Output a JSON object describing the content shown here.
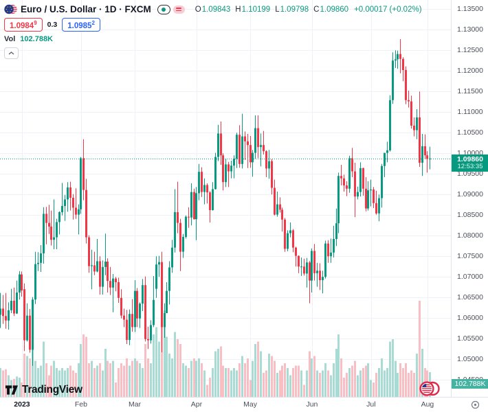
{
  "header": {
    "symbol_title": "Euro / U.S. Dollar · 1D · FXCM",
    "ohlc": {
      "o_label": "O",
      "o_value": "1.09843",
      "h_label": "H",
      "h_value": "1.10199",
      "l_label": "L",
      "l_value": "1.09798",
      "c_label": "C",
      "c_value": "1.09860",
      "change_value": "+0.00017 (+0.02%)"
    },
    "bid_main": "1.0984",
    "bid_sup": "9",
    "spread": "0.3",
    "ask_main": "1.0985",
    "ask_sup": "2",
    "vol_label": "Vol",
    "vol_value": "102.788K"
  },
  "price_badge": {
    "price": "1.09860",
    "countdown": "12:53:35"
  },
  "vol_badge": {
    "value": "102.788K"
  },
  "footer": {
    "logo_text": "TradingView"
  },
  "colors": {
    "up": "#089981",
    "down": "#f23645",
    "vol_up": "#a8dbd3",
    "vol_down": "#f9bec3",
    "grid": "#eef1f7",
    "last_price_line": "#089981",
    "badge_bg": "#089981",
    "vol_badge_bg": "#45b3a2",
    "bid_red": "#f23645",
    "ask_blue": "#2962ff",
    "axis_text": "#4a4e59",
    "text": "#131722"
  },
  "chart_data": {
    "type": "candlestick",
    "title": "Euro / U.S. Dollar",
    "interval": "1D",
    "exchange": "FXCM",
    "last_price": 1.0986,
    "countdown": "12:53:35",
    "current_volume": "102.788K",
    "y_axis": {
      "min": 1.045,
      "max": 1.135,
      "step": 0.005,
      "format_decimals": 5
    },
    "x_labels": [
      {
        "label": "2023",
        "i": 8,
        "year": true
      },
      {
        "label": "Feb",
        "i": 30
      },
      {
        "label": "Mar",
        "i": 50
      },
      {
        "label": "Apr",
        "i": 73
      },
      {
        "label": "May",
        "i": 93
      },
      {
        "label": "Jun",
        "i": 116
      },
      {
        "label": "Jul",
        "i": 138
      },
      {
        "label": "Aug",
        "i": 159
      }
    ],
    "series_format": [
      "open",
      "high",
      "low",
      "close",
      "volume_k"
    ],
    "series": [
      [
        1.0607,
        1.066,
        1.0575,
        1.0622,
        120
      ],
      [
        1.0622,
        1.0655,
        1.0585,
        1.0604,
        110
      ],
      [
        1.0604,
        1.066,
        1.0573,
        1.0593,
        115
      ],
      [
        1.0593,
        1.0637,
        1.0571,
        1.0618,
        90
      ],
      [
        1.0618,
        1.067,
        1.0611,
        1.0641,
        70
      ],
      [
        1.0641,
        1.0673,
        1.0604,
        1.061,
        75
      ],
      [
        1.061,
        1.069,
        1.0609,
        1.0661,
        85
      ],
      [
        1.0661,
        1.0713,
        1.0644,
        1.0705,
        80
      ],
      [
        1.0705,
        1.0712,
        1.0651,
        1.0666,
        60
      ],
      [
        1.0669,
        1.0683,
        1.0519,
        1.0545,
        180
      ],
      [
        1.0545,
        1.0635,
        1.0542,
        1.0605,
        170
      ],
      [
        1.0605,
        1.0621,
        1.0515,
        1.0522,
        160
      ],
      [
        1.0522,
        1.065,
        1.0483,
        1.0644,
        210
      ],
      [
        1.0644,
        1.076,
        1.0633,
        1.073,
        150
      ],
      [
        1.073,
        1.0759,
        1.0713,
        1.0733,
        120
      ],
      [
        1.0733,
        1.0776,
        1.0711,
        1.0756,
        130
      ],
      [
        1.0756,
        1.0868,
        1.0731,
        1.0852,
        230
      ],
      [
        1.0852,
        1.0869,
        1.0778,
        1.083,
        140
      ],
      [
        1.083,
        1.0874,
        1.0803,
        1.0821,
        90
      ],
      [
        1.0821,
        1.086,
        1.0775,
        1.0789,
        130
      ],
      [
        1.0789,
        1.0887,
        1.0766,
        1.0795,
        150
      ],
      [
        1.0795,
        1.084,
        1.0766,
        1.0832,
        120
      ],
      [
        1.0832,
        1.0858,
        1.0802,
        1.0856,
        110
      ],
      [
        1.0856,
        1.0927,
        1.0848,
        1.0871,
        120
      ],
      [
        1.0871,
        1.0898,
        1.0835,
        1.0887,
        110
      ],
      [
        1.0887,
        1.0929,
        1.0857,
        1.0916,
        120
      ],
      [
        1.0916,
        1.093,
        1.086,
        1.0891,
        130
      ],
      [
        1.0891,
        1.09,
        1.0838,
        1.0867,
        110
      ],
      [
        1.0867,
        1.0914,
        1.084,
        1.085,
        100
      ],
      [
        1.085,
        1.0875,
        1.0802,
        1.0863,
        140
      ],
      [
        1.0863,
        1.099,
        1.0852,
        1.0987,
        220
      ],
      [
        1.0987,
        1.1033,
        1.0885,
        1.091,
        260
      ],
      [
        1.091,
        1.0937,
        1.078,
        1.0795,
        250
      ],
      [
        1.0795,
        1.08,
        1.0709,
        1.0725,
        140
      ],
      [
        1.0725,
        1.0765,
        1.0669,
        1.0727,
        150
      ],
      [
        1.0727,
        1.076,
        1.0703,
        1.0712,
        120
      ],
      [
        1.0712,
        1.0791,
        1.071,
        1.0737,
        130
      ],
      [
        1.0737,
        1.0749,
        1.0656,
        1.0675,
        140
      ],
      [
        1.0675,
        1.0739,
        1.0656,
        1.0723,
        110
      ],
      [
        1.0723,
        1.0804,
        1.0703,
        1.0736,
        200
      ],
      [
        1.0736,
        1.0744,
        1.0661,
        1.0689,
        150
      ],
      [
        1.0689,
        1.0723,
        1.0655,
        1.0673,
        140
      ],
      [
        1.0673,
        1.0706,
        1.0613,
        1.0695,
        150
      ],
      [
        1.0695,
        1.0699,
        1.0664,
        1.0686,
        60
      ],
      [
        1.0686,
        1.0697,
        1.0636,
        1.0648,
        120
      ],
      [
        1.0648,
        1.0669,
        1.0598,
        1.0605,
        140
      ],
      [
        1.0605,
        1.0622,
        1.0577,
        1.0595,
        130
      ],
      [
        1.0595,
        1.0619,
        1.0536,
        1.0546,
        160
      ],
      [
        1.0546,
        1.062,
        1.0533,
        1.0609,
        130
      ],
      [
        1.0609,
        1.0645,
        1.0566,
        1.0577,
        150
      ],
      [
        1.0577,
        1.0691,
        1.0565,
        1.0665,
        160
      ],
      [
        1.0665,
        1.0672,
        1.0577,
        1.0598,
        150
      ],
      [
        1.0598,
        1.0637,
        1.0575,
        1.0634,
        140
      ],
      [
        1.0634,
        1.0694,
        1.0616,
        1.0679,
        120
      ],
      [
        1.0679,
        1.07,
        1.0542,
        1.0548,
        220
      ],
      [
        1.0548,
        1.0578,
        1.0524,
        1.0545,
        160
      ],
      [
        1.0545,
        1.0594,
        1.0537,
        1.0582,
        140
      ],
      [
        1.0582,
        1.0701,
        1.0577,
        1.0643,
        260
      ],
      [
        1.067,
        1.0749,
        1.0648,
        1.0729,
        290
      ],
      [
        1.0729,
        1.075,
        1.0699,
        1.0735,
        230
      ],
      [
        1.0735,
        1.076,
        1.0516,
        1.0577,
        300
      ],
      [
        1.0577,
        1.0635,
        1.0551,
        1.0611,
        360
      ],
      [
        1.0611,
        1.0686,
        1.0611,
        1.0665,
        250
      ],
      [
        1.0665,
        1.0737,
        1.0632,
        1.0722,
        180
      ],
      [
        1.0722,
        1.0789,
        1.0709,
        1.077,
        160
      ],
      [
        1.077,
        1.0912,
        1.0758,
        1.0856,
        270
      ],
      [
        1.0856,
        1.093,
        1.0805,
        1.083,
        240
      ],
      [
        1.083,
        1.084,
        1.0713,
        1.076,
        220
      ],
      [
        1.076,
        1.0803,
        1.0745,
        1.0796,
        140
      ],
      [
        1.0796,
        1.0848,
        1.0792,
        1.0845,
        130
      ],
      [
        1.0845,
        1.0868,
        1.0818,
        1.0843,
        120
      ],
      [
        1.0843,
        1.0926,
        1.0824,
        1.0905,
        150
      ],
      [
        1.0905,
        1.0913,
        1.0838,
        1.0839,
        160
      ],
      [
        1.0839,
        1.0917,
        1.0788,
        1.0902,
        150
      ],
      [
        1.0902,
        1.0973,
        1.0885,
        1.0954,
        160
      ],
      [
        1.0954,
        1.0965,
        1.0893,
        1.0905,
        140
      ],
      [
        1.0905,
        1.0938,
        1.0875,
        1.0922,
        110
      ],
      [
        1.0922,
        1.0926,
        1.0877,
        1.0904,
        50
      ],
      [
        1.0904,
        1.0907,
        1.0831,
        1.0861,
        80
      ],
      [
        1.0861,
        1.0929,
        1.086,
        1.0912,
        120
      ],
      [
        1.0912,
        1.1,
        1.0911,
        1.099,
        190
      ],
      [
        1.099,
        1.1068,
        1.098,
        1.1047,
        200
      ],
      [
        1.1047,
        1.1076,
        1.0971,
        1.0994,
        210
      ],
      [
        1.0994,
        1.0999,
        1.0909,
        1.0929,
        130
      ],
      [
        1.0929,
        1.0985,
        1.0917,
        1.0972,
        120
      ],
      [
        1.0972,
        1.0978,
        1.0917,
        1.0955,
        120
      ],
      [
        1.0955,
        1.0981,
        1.0938,
        1.0969,
        110
      ],
      [
        1.0969,
        1.0994,
        1.0938,
        1.0986,
        120
      ],
      [
        1.0986,
        1.1049,
        1.0963,
        1.1044,
        110
      ],
      [
        1.1044,
        1.1067,
        1.0964,
        1.0973,
        140
      ],
      [
        1.0973,
        1.1095,
        1.0962,
        1.104,
        170
      ],
      [
        1.104,
        1.1052,
        1.0983,
        1.1028,
        140
      ],
      [
        1.1028,
        1.1046,
        1.0963,
        1.1019,
        160
      ],
      [
        1.1019,
        1.1041,
        1.0964,
        1.0977,
        70
      ],
      [
        1.0977,
        1.1007,
        1.0942,
        1.1,
        150
      ],
      [
        1.1,
        1.1091,
        1.0986,
        1.106,
        220
      ],
      [
        1.106,
        1.1091,
        1.0987,
        1.1014,
        230
      ],
      [
        1.1014,
        1.1047,
        1.0967,
        1.1019,
        190
      ],
      [
        1.1019,
        1.1053,
        1.0996,
        1.1004,
        100
      ],
      [
        1.1004,
        1.1006,
        1.0941,
        1.0962,
        110
      ],
      [
        1.0962,
        1.1007,
        1.0937,
        1.098,
        180
      ],
      [
        1.098,
        1.0985,
        1.0899,
        1.0915,
        170
      ],
      [
        1.0915,
        1.0935,
        1.0848,
        1.085,
        150
      ],
      [
        1.085,
        1.0906,
        1.0845,
        1.0875,
        100
      ],
      [
        1.0875,
        1.0892,
        1.0855,
        1.0862,
        110
      ],
      [
        1.0862,
        1.0867,
        1.0809,
        1.0838,
        130
      ],
      [
        1.0838,
        1.0842,
        1.076,
        1.0767,
        140
      ],
      [
        1.0767,
        1.0812,
        1.0761,
        1.0805,
        120
      ],
      [
        1.0805,
        1.0831,
        1.0795,
        1.0812,
        90
      ],
      [
        1.0812,
        1.0815,
        1.0759,
        1.077,
        120
      ],
      [
        1.077,
        1.0772,
        1.0724,
        1.075,
        130
      ],
      [
        1.075,
        1.0751,
        1.0708,
        1.0724,
        130
      ],
      [
        1.0724,
        1.0746,
        1.0701,
        1.0724,
        110
      ],
      [
        1.0724,
        1.0743,
        1.0702,
        1.0707,
        50
      ],
      [
        1.0707,
        1.0745,
        1.0673,
        1.0734,
        110
      ],
      [
        1.0734,
        1.0738,
        1.0635,
        1.069,
        190
      ],
      [
        1.069,
        1.0768,
        1.0661,
        1.0762,
        160
      ],
      [
        1.0762,
        1.0779,
        1.069,
        1.0708,
        170
      ],
      [
        1.0708,
        1.0733,
        1.0675,
        1.0714,
        110
      ],
      [
        1.0714,
        1.0732,
        1.0667,
        1.0691,
        100
      ],
      [
        1.0691,
        1.0714,
        1.0659,
        1.0699,
        110
      ],
      [
        1.0699,
        1.0787,
        1.0695,
        1.078,
        140
      ],
      [
        1.078,
        1.0788,
        1.0733,
        1.0749,
        110
      ],
      [
        1.0749,
        1.0792,
        1.0733,
        1.0758,
        90
      ],
      [
        1.0758,
        1.0823,
        1.0746,
        1.0791,
        140
      ],
      [
        1.0791,
        1.0865,
        1.0774,
        1.0829,
        200
      ],
      [
        1.0829,
        1.0952,
        1.0805,
        1.0944,
        260
      ],
      [
        1.0944,
        1.0971,
        1.0921,
        1.0938,
        160
      ],
      [
        1.0938,
        1.0947,
        1.0906,
        1.0921,
        80
      ],
      [
        1.0921,
        1.0931,
        1.0895,
        1.0913,
        100
      ],
      [
        1.0913,
        1.0993,
        1.0903,
        1.0987,
        120
      ],
      [
        1.0987,
        1.1012,
        1.0941,
        1.0955,
        130
      ],
      [
        1.0955,
        1.0976,
        1.0844,
        1.0894,
        150
      ],
      [
        1.0894,
        1.0918,
        1.0887,
        1.0905,
        90
      ],
      [
        1.0905,
        1.0977,
        1.0894,
        1.0963,
        110
      ],
      [
        1.0963,
        1.0964,
        1.0896,
        1.0913,
        120
      ],
      [
        1.0913,
        1.0941,
        1.0858,
        1.0865,
        130
      ],
      [
        1.0865,
        1.0931,
        1.086,
        1.0909,
        140
      ],
      [
        1.0909,
        1.0935,
        1.087,
        1.0911,
        70
      ],
      [
        1.0911,
        1.0917,
        1.0866,
        1.0878,
        60
      ],
      [
        1.0878,
        1.0908,
        1.085,
        1.0853,
        100
      ],
      [
        1.0853,
        1.0899,
        1.0834,
        1.089,
        120
      ],
      [
        1.089,
        1.0973,
        1.0867,
        1.0968,
        160
      ],
      [
        1.0968,
        1.1,
        1.0941,
        1.1,
        110
      ],
      [
        1.1,
        1.1027,
        1.0977,
        1.1006,
        120
      ],
      [
        1.1006,
        1.114,
        1.1003,
        1.1128,
        230
      ],
      [
        1.1128,
        1.1244,
        1.1119,
        1.1224,
        240
      ],
      [
        1.1224,
        1.1249,
        1.1206,
        1.1227,
        150
      ],
      [
        1.1227,
        1.1248,
        1.1204,
        1.124,
        100
      ],
      [
        1.124,
        1.1276,
        1.1193,
        1.1228,
        140
      ],
      [
        1.1228,
        1.1232,
        1.1174,
        1.1201,
        120
      ],
      [
        1.1201,
        1.121,
        1.1118,
        1.1128,
        140
      ],
      [
        1.1128,
        1.1151,
        1.111,
        1.1125,
        100
      ],
      [
        1.1125,
        1.1139,
        1.1059,
        1.1066,
        110
      ],
      [
        1.1066,
        1.1086,
        1.104,
        1.1055,
        100
      ],
      [
        1.1055,
        1.1106,
        1.1033,
        1.1086,
        180
      ],
      [
        1.1086,
        1.1149,
        1.0966,
        1.0976,
        400
      ],
      [
        1.0976,
        1.1046,
        1.0944,
        1.1016,
        200
      ],
      [
        1.1016,
        1.1045,
        1.0985,
        1.0994,
        120
      ],
      [
        1.0994,
        1.1004,
        1.0952,
        1.0985,
        110
      ],
      [
        1.0985,
        1.1015,
        1.096,
        1.0986,
        102.788
      ]
    ]
  }
}
